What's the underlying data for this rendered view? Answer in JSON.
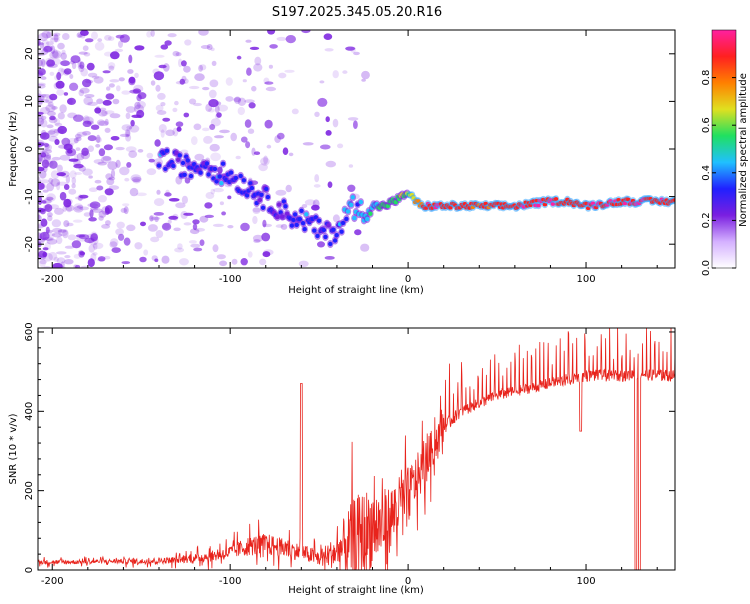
{
  "title": "S197.2025.345.05.20.R16",
  "colors": {
    "signal": "#e8231c",
    "frame": "#000000",
    "scatter": "#7a1fe0",
    "track_hot": "#ff2020",
    "track_mid": "#20e060",
    "track_cool": "#20c0ff"
  },
  "chart_data": [
    {
      "type": "heatmap",
      "name": "spectrogram",
      "title": "S197.2025.345.05.20.R16",
      "xlabel": "Height of straight line (km)",
      "ylabel": "Frequency (Hz)",
      "xlim": [
        -208,
        150
      ],
      "ylim": [
        -25,
        25
      ],
      "x_ticks": [
        -200,
        -100,
        0,
        100
      ],
      "y_ticks": [
        20,
        10,
        0,
        -10,
        -20
      ],
      "colorbar": {
        "label": "Normalized spectral amplitude",
        "range": [
          0.0,
          1.0
        ],
        "ticks": [
          0.0,
          0.2,
          0.4,
          0.6,
          0.8
        ],
        "tick_labels": [
          "0.0",
          "0.2",
          "0.4",
          "0.6",
          "0.8"
        ],
        "stops": [
          "#ffffff",
          "#d4b0ff",
          "#7a1fe0",
          "#2020ff",
          "#20c0ff",
          "#20e060",
          "#e0e020",
          "#ff8000",
          "#ff2020",
          "#ff20a0"
        ]
      },
      "track": {
        "x": [
          -138,
          -130,
          -122,
          -114,
          -106,
          -98,
          -90,
          -82,
          -74,
          -66,
          -58,
          -50,
          -44,
          -38,
          -32,
          -26,
          -20,
          -14,
          -8,
          -3,
          0,
          4,
          8,
          14,
          25,
          40,
          60,
          80,
          90,
          100,
          120,
          150
        ],
        "y": [
          -2,
          -3,
          -4,
          -3,
          -5,
          -6,
          -8,
          -10,
          -12,
          -14,
          -15,
          -17,
          -18,
          -16,
          -12,
          -13,
          -12,
          -12,
          -11,
          -10,
          -9,
          -11,
          -12,
          -12,
          -12,
          -12,
          -12,
          -11,
          -11,
          -12,
          -11,
          -11
        ],
        "intensity": [
          0.35,
          0.3,
          0.35,
          0.3,
          0.35,
          0.3,
          0.35,
          0.3,
          0.3,
          0.3,
          0.35,
          0.3,
          0.3,
          0.35,
          0.4,
          0.45,
          0.5,
          0.55,
          0.55,
          0.6,
          0.6,
          0.7,
          0.85,
          0.95,
          0.9,
          0.85,
          0.9,
          0.95,
          0.9,
          0.9,
          0.95,
          0.9
        ]
      }
    },
    {
      "type": "line",
      "name": "snr",
      "xlabel": "Height of straight line (km)",
      "ylabel": "SNR (10 * v/v)",
      "xlim": [
        -208,
        150
      ],
      "ylim": [
        0,
        610
      ],
      "x_ticks": [
        -200,
        -100,
        0,
        100
      ],
      "y_ticks": [
        0,
        200,
        400,
        600
      ],
      "series": [
        {
          "name": "SNR",
          "x": [
            -208,
            -190,
            -170,
            -150,
            -130,
            -110,
            -100,
            -90,
            -80,
            -70,
            -60,
            -50,
            -40,
            -35,
            -30,
            -25,
            -20,
            -15,
            -10,
            -5,
            0,
            5,
            10,
            15,
            20,
            25,
            30,
            40,
            50,
            60,
            70,
            80,
            90,
            100,
            110,
            120,
            130,
            140,
            150
          ],
          "y": [
            20,
            20,
            22,
            22,
            25,
            35,
            45,
            60,
            65,
            55,
            45,
            30,
            45,
            60,
            80,
            90,
            110,
            110,
            130,
            160,
            190,
            230,
            270,
            320,
            360,
            380,
            400,
            420,
            440,
            450,
            460,
            470,
            480,
            490,
            490,
            490,
            495,
            490,
            490
          ],
          "noise": [
            8,
            8,
            8,
            10,
            12,
            20,
            25,
            35,
            40,
            35,
            30,
            30,
            60,
            120,
            150,
            160,
            150,
            130,
            120,
            110,
            100,
            90,
            80,
            70,
            60,
            55,
            50,
            45,
            45,
            45,
            45,
            50,
            50,
            50,
            50,
            50,
            50,
            50,
            50
          ]
        }
      ],
      "dips": [
        {
          "x": -60,
          "y": 470
        },
        {
          "x": 97,
          "y": 350
        },
        {
          "x": 128,
          "y": 0
        },
        {
          "x": 130,
          "y": 0
        }
      ]
    }
  ]
}
